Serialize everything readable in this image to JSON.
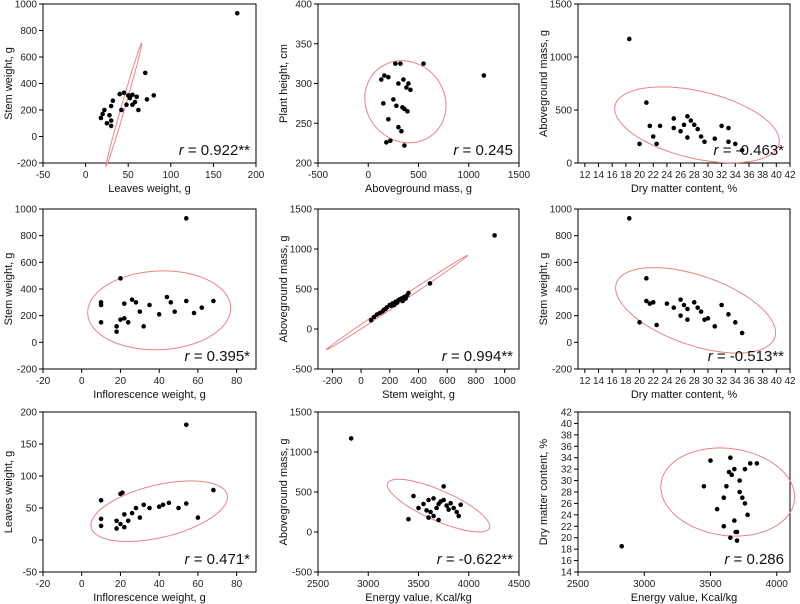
{
  "chart_data": [
    {
      "type": "scatter",
      "xlabel": "Leaves weight, g",
      "ylabel": "Stem weight, g",
      "xlim": [
        -50,
        200
      ],
      "ylim": [
        -200,
        1000
      ],
      "xticks": [
        -50,
        0,
        50,
        100,
        150,
        200
      ],
      "yticks": [
        -200,
        0,
        200,
        400,
        600,
        800,
        1000
      ],
      "r_symbol": "r",
      "r_text": " = 0.922**",
      "ellipse": {
        "center": [
          44.9,
          240
        ],
        "semi_major": 99,
        "semi_minor": 11,
        "angle_deg": 77.8
      },
      "points": [
        [
          178,
          930
        ],
        [
          70,
          480
        ],
        [
          80,
          310
        ],
        [
          72,
          280
        ],
        [
          45,
          330
        ],
        [
          50,
          310
        ],
        [
          55,
          315
        ],
        [
          52,
          290
        ],
        [
          58,
          260
        ],
        [
          48,
          240
        ],
        [
          42,
          200
        ],
        [
          32,
          270
        ],
        [
          30,
          230
        ],
        [
          22,
          200
        ],
        [
          20,
          170
        ],
        [
          28,
          160
        ],
        [
          18,
          140
        ],
        [
          30,
          120
        ],
        [
          25,
          100
        ],
        [
          30,
          80
        ],
        [
          60,
          300
        ],
        [
          55,
          240
        ],
        [
          40,
          320
        ],
        [
          62,
          200
        ]
      ]
    },
    {
      "type": "scatter",
      "xlabel": "Aboveground mass, g",
      "ylabel": "Plant height, cm",
      "xlim": [
        -500,
        1500
      ],
      "ylim": [
        200,
        400
      ],
      "xticks": [
        -500,
        0,
        500,
        1000,
        1500
      ],
      "yticks": [
        200,
        250,
        300,
        350,
        400
      ],
      "r_symbol": "r",
      "r_text": " = 0.245",
      "ellipse": {
        "center": [
          370,
          277
        ],
        "semi_major": 400,
        "semi_minor": 52,
        "angle_deg": 10
      },
      "points": [
        [
          1150,
          310
        ],
        [
          550,
          325
        ],
        [
          320,
          325
        ],
        [
          270,
          325
        ],
        [
          200,
          308
        ],
        [
          160,
          310
        ],
        [
          130,
          305
        ],
        [
          350,
          305
        ],
        [
          400,
          300
        ],
        [
          380,
          295
        ],
        [
          300,
          300
        ],
        [
          250,
          280
        ],
        [
          280,
          272
        ],
        [
          340,
          270
        ],
        [
          360,
          268
        ],
        [
          390,
          265
        ],
        [
          420,
          292
        ],
        [
          200,
          255
        ],
        [
          300,
          245
        ],
        [
          330,
          240
        ],
        [
          180,
          226
        ],
        [
          220,
          228
        ],
        [
          360,
          222
        ],
        [
          150,
          275
        ]
      ]
    },
    {
      "type": "scatter",
      "xlabel": "Dry matter content, %",
      "ylabel": "Aboveground mass, g",
      "xlim": [
        11,
        42
      ],
      "ylim": [
        0,
        1500
      ],
      "xticks": [
        12,
        14,
        16,
        18,
        20,
        22,
        24,
        26,
        28,
        30,
        32,
        34,
        36,
        38,
        40,
        42
      ],
      "yticks": [
        0,
        500,
        1000,
        1500
      ],
      "r_symbol": "r",
      "r_text": " = -0.463*",
      "ellipse": {
        "center": [
          28.4,
          360
        ],
        "semi_major": 12.6,
        "semi_minor": 310,
        "angle_deg": -20
      },
      "points": [
        [
          18.5,
          1170
        ],
        [
          21,
          570
        ],
        [
          20,
          180
        ],
        [
          21.5,
          350
        ],
        [
          22,
          250
        ],
        [
          23,
          350
        ],
        [
          22.5,
          180
        ],
        [
          25,
          420
        ],
        [
          25,
          330
        ],
        [
          26,
          300
        ],
        [
          26.5,
          360
        ],
        [
          27,
          440
        ],
        [
          27,
          240
        ],
        [
          28,
          360
        ],
        [
          28.5,
          320
        ],
        [
          29,
          250
        ],
        [
          29.5,
          200
        ],
        [
          31,
          230
        ],
        [
          32,
          350
        ],
        [
          33,
          330
        ],
        [
          33,
          200
        ],
        [
          34,
          180
        ],
        [
          35,
          120
        ],
        [
          27.5,
          400
        ]
      ]
    },
    {
      "type": "scatter",
      "xlabel": "Inflorescence weight, g",
      "ylabel": "Stem weight, g",
      "xlim": [
        -20,
        90
      ],
      "ylim": [
        -200,
        1000
      ],
      "xticks": [
        -20,
        0,
        20,
        40,
        60,
        80
      ],
      "yticks": [
        -200,
        0,
        200,
        400,
        600,
        800,
        1000
      ],
      "r_symbol": "r",
      "r_text": " = 0.395*",
      "ellipse": {
        "center": [
          40,
          240
        ],
        "semi_major": 37,
        "semi_minor": 295,
        "angle_deg": 5
      },
      "points": [
        [
          54,
          930
        ],
        [
          20,
          480
        ],
        [
          10,
          300
        ],
        [
          10,
          280
        ],
        [
          10,
          150
        ],
        [
          18,
          120
        ],
        [
          18,
          80
        ],
        [
          20,
          170
        ],
        [
          22,
          180
        ],
        [
          24,
          150
        ],
        [
          26,
          320
        ],
        [
          28,
          300
        ],
        [
          30,
          230
        ],
        [
          32,
          120
        ],
        [
          35,
          280
        ],
        [
          40,
          210
        ],
        [
          44,
          340
        ],
        [
          46,
          300
        ],
        [
          48,
          230
        ],
        [
          54,
          310
        ],
        [
          58,
          220
        ],
        [
          62,
          260
        ],
        [
          68,
          310
        ],
        [
          22,
          290
        ]
      ]
    },
    {
      "type": "scatter",
      "xlabel": "Stem weight, g",
      "ylabel": "Aboveground mass, g",
      "xlim": [
        -300,
        1100
      ],
      "ylim": [
        -500,
        1500
      ],
      "xticks": [
        -200,
        0,
        200,
        400,
        600,
        800,
        1000
      ],
      "yticks": [
        -500,
        0,
        500,
        1000,
        1500
      ],
      "r_symbol": "r",
      "r_text": " = 0.994**",
      "ellipse": {
        "center": [
          250,
          330
        ],
        "semi_major": 640,
        "semi_minor": 25,
        "angle_deg": 40
      },
      "points": [
        [
          930,
          1170
        ],
        [
          480,
          570
        ],
        [
          330,
          450
        ],
        [
          320,
          420
        ],
        [
          300,
          400
        ],
        [
          280,
          380
        ],
        [
          260,
          360
        ],
        [
          240,
          340
        ],
        [
          220,
          320
        ],
        [
          200,
          300
        ],
        [
          180,
          270
        ],
        [
          160,
          240
        ],
        [
          150,
          220
        ],
        [
          130,
          200
        ],
        [
          110,
          180
        ],
        [
          90,
          150
        ],
        [
          70,
          110
        ],
        [
          310,
          380
        ],
        [
          290,
          350
        ],
        [
          250,
          330
        ],
        [
          210,
          290
        ],
        [
          170,
          250
        ],
        [
          270,
          370
        ],
        [
          230,
          300
        ]
      ]
    },
    {
      "type": "scatter",
      "xlabel": "Dry matter content, %",
      "ylabel": "Stem weight, g",
      "xlim": [
        11,
        42
      ],
      "ylim": [
        -200,
        1000
      ],
      "xticks": [
        12,
        14,
        16,
        18,
        20,
        22,
        24,
        26,
        28,
        30,
        32,
        34,
        36,
        38,
        40,
        42
      ],
      "yticks": [
        -200,
        0,
        200,
        400,
        600,
        800,
        1000
      ],
      "r_symbol": "r",
      "r_text": " = -0.513**",
      "ellipse": {
        "center": [
          28.2,
          240
        ],
        "semi_major": 12.8,
        "semi_minor": 250,
        "angle_deg": -28
      },
      "points": [
        [
          18.5,
          930
        ],
        [
          21,
          480
        ],
        [
          20,
          150
        ],
        [
          21,
          310
        ],
        [
          21.5,
          290
        ],
        [
          22,
          300
        ],
        [
          22.5,
          130
        ],
        [
          24,
          290
        ],
        [
          25,
          260
        ],
        [
          26,
          320
        ],
        [
          26.5,
          280
        ],
        [
          27,
          250
        ],
        [
          27,
          170
        ],
        [
          28,
          300
        ],
        [
          28.5,
          260
        ],
        [
          29,
          230
        ],
        [
          29.5,
          170
        ],
        [
          31,
          120
        ],
        [
          32,
          280
        ],
        [
          33,
          210
        ],
        [
          34,
          150
        ],
        [
          35,
          70
        ],
        [
          30,
          180
        ],
        [
          26,
          200
        ]
      ]
    },
    {
      "type": "scatter",
      "xlabel": "Inflorescence weight, g",
      "ylabel": "Leaves weight, g",
      "xlim": [
        -20,
        90
      ],
      "ylim": [
        -50,
        200
      ],
      "xticks": [
        -20,
        0,
        20,
        40,
        60,
        80
      ],
      "yticks": [
        -50,
        0,
        50,
        100,
        150,
        200
      ],
      "r_symbol": "r",
      "r_text": " = 0.471*",
      "ellipse": {
        "center": [
          40,
          45
        ],
        "semi_major": 37,
        "semi_minor": 40,
        "angle_deg": 20
      },
      "points": [
        [
          54,
          180
        ],
        [
          10,
          62
        ],
        [
          10,
          33
        ],
        [
          10,
          22
        ],
        [
          18,
          30
        ],
        [
          20,
          25
        ],
        [
          20,
          72
        ],
        [
          21,
          74
        ],
        [
          22,
          40
        ],
        [
          22,
          20
        ],
        [
          24,
          30
        ],
        [
          26,
          42
        ],
        [
          28,
          50
        ],
        [
          30,
          35
        ],
        [
          32,
          55
        ],
        [
          35,
          50
        ],
        [
          40,
          52
        ],
        [
          42,
          55
        ],
        [
          45,
          58
        ],
        [
          50,
          50
        ],
        [
          54,
          57
        ],
        [
          60,
          35
        ],
        [
          68,
          78
        ],
        [
          18,
          18
        ]
      ]
    },
    {
      "type": "scatter",
      "xlabel": "Energy value, Kcal/kg",
      "ylabel": "Aboveground mass, g",
      "xlim": [
        2500,
        4500
      ],
      "ylim": [
        -500,
        1500
      ],
      "xticks": [
        2500,
        3000,
        3500,
        4000,
        4500
      ],
      "yticks": [
        -500,
        0,
        500,
        1000,
        1500
      ],
      "r_symbol": "r",
      "r_text": " = -0.622**",
      "ellipse": {
        "center": [
          3700,
          330
        ],
        "semi_major": 580,
        "semi_minor": 180,
        "angle_deg": -30
      },
      "points": [
        [
          2830,
          1170
        ],
        [
          3450,
          450
        ],
        [
          3500,
          300
        ],
        [
          3550,
          350
        ],
        [
          3600,
          400
        ],
        [
          3620,
          250
        ],
        [
          3650,
          200
        ],
        [
          3680,
          300
        ],
        [
          3700,
          350
        ],
        [
          3720,
          380
        ],
        [
          3750,
          400
        ],
        [
          3780,
          330
        ],
        [
          3800,
          280
        ],
        [
          3820,
          360
        ],
        [
          3850,
          300
        ],
        [
          3880,
          250
        ],
        [
          3900,
          200
        ],
        [
          3700,
          150
        ],
        [
          3600,
          180
        ],
        [
          3650,
          420
        ],
        [
          3750,
          570
        ],
        [
          3400,
          160
        ],
        [
          3580,
          270
        ],
        [
          3920,
          340
        ]
      ]
    },
    {
      "type": "scatter",
      "xlabel": "Energy value, Kcal/kg",
      "ylabel": "Dry matter content, %",
      "xlim": [
        2500,
        4100
      ],
      "ylim": [
        14,
        42
      ],
      "xticks": [
        2500,
        3000,
        3500,
        4000
      ],
      "yticks": [
        14,
        16,
        18,
        20,
        22,
        24,
        26,
        28,
        30,
        32,
        34,
        36,
        38,
        40,
        42
      ],
      "r_symbol": "r",
      "r_text": " = 0.286",
      "ellipse": {
        "center": [
          3630,
          28
        ],
        "semi_major": 430,
        "semi_minor": 9,
        "angle_deg": 70
      },
      "points": [
        [
          2830,
          18.5
        ],
        [
          3450,
          29
        ],
        [
          3500,
          33.5
        ],
        [
          3550,
          25
        ],
        [
          3600,
          27
        ],
        [
          3620,
          29
        ],
        [
          3650,
          34
        ],
        [
          3660,
          31
        ],
        [
          3680,
          32
        ],
        [
          3700,
          21
        ],
        [
          3720,
          28
        ],
        [
          3740,
          27
        ],
        [
          3760,
          26
        ],
        [
          3780,
          24
        ],
        [
          3800,
          33
        ],
        [
          3850,
          33
        ],
        [
          3650,
          20
        ],
        [
          3700,
          19.5
        ],
        [
          3600,
          22
        ],
        [
          3680,
          23
        ],
        [
          3720,
          30
        ],
        [
          3760,
          32
        ],
        [
          3640,
          31.5
        ],
        [
          3690,
          21
        ]
      ]
    }
  ]
}
